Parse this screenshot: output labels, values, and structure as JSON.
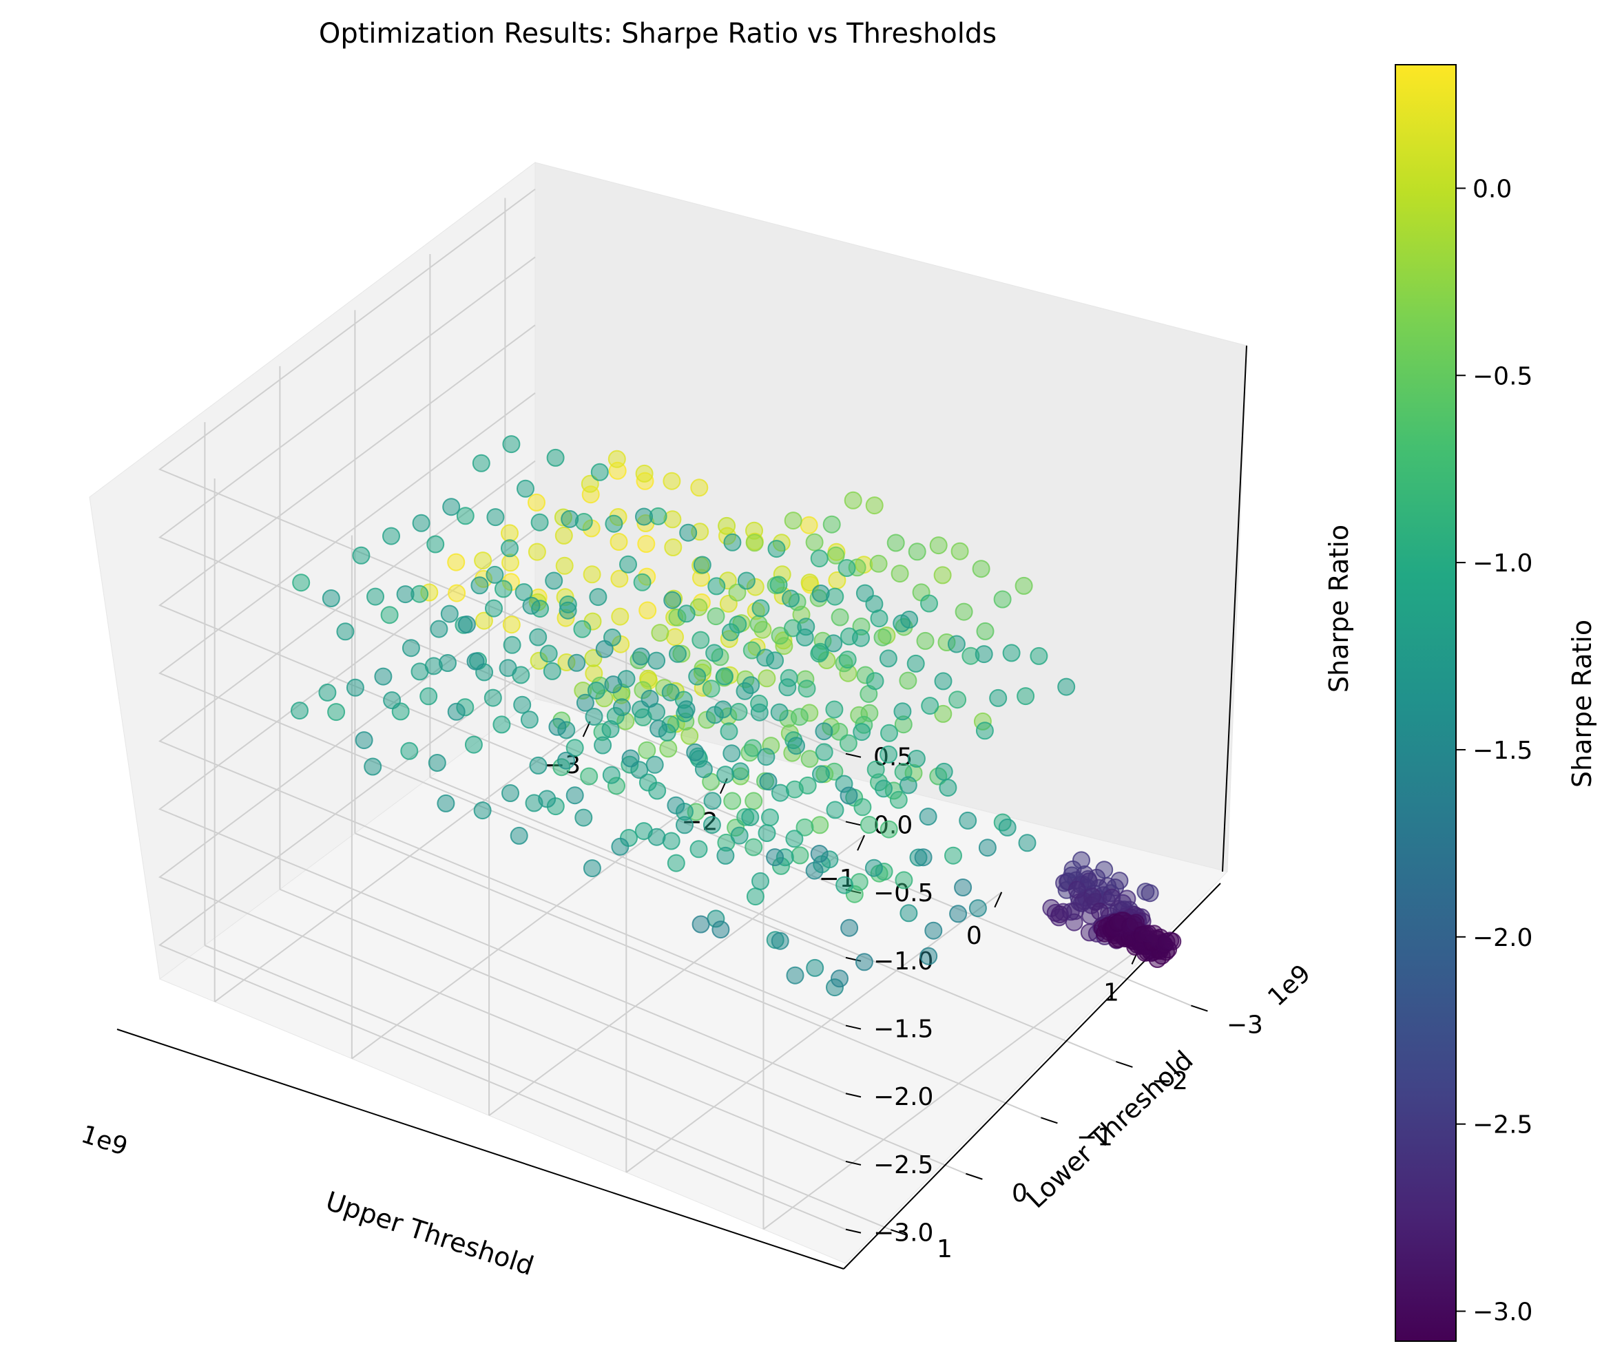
{
  "chart_data": {
    "type": "scatter",
    "projection": "3d",
    "title": "Optimization Results: Sharpe Ratio vs Thresholds",
    "xlabel": "Upper Threshold",
    "ylabel": "Lower Threshold",
    "zlabel": "Sharpe Ratio",
    "x_offset_text": "1e9",
    "y_offset_text": "1e9",
    "x_ticks": [
      "−3",
      "−2",
      "−1",
      "0",
      "1"
    ],
    "y_ticks": [
      "−3",
      "−2",
      "−1",
      "0",
      "1"
    ],
    "z_ticks": [
      "−3.0",
      "−2.5",
      "−2.0",
      "−1.5",
      "−1.0",
      "−0.5",
      "0.0",
      "0.5"
    ],
    "xlim": [
      -3.4,
      1.6
    ],
    "ylim": [
      -3.4,
      1.6
    ],
    "zlim": [
      -3.25,
      0.6
    ],
    "grid": true,
    "colormap": "viridis",
    "marker_alpha": 0.5,
    "colorbar": {
      "label": "Sharpe Ratio",
      "range": [
        -3.08,
        0.33
      ],
      "ticks": [
        "−3.0",
        "−2.5",
        "−2.0",
        "−1.5",
        "−1.0",
        "−0.5",
        "0.0"
      ]
    },
    "point_groups": [
      {
        "description": "left shelf",
        "x_range": [
          -3.3,
          -0.4
        ],
        "y_range": [
          -2.9,
          -0.1
        ],
        "z_range": [
          -1.3,
          -0.95
        ]
      },
      {
        "description": "left plateau rows",
        "x_range": [
          -2.6,
          -0.2
        ],
        "y_range": [
          -1.4,
          1.2
        ],
        "z_range": [
          -1.4,
          -1.0
        ]
      },
      {
        "description": "yellow ridge",
        "x_range": [
          -1.6,
          0.2
        ],
        "y_range": [
          -1.2,
          1.3
        ],
        "z_range": [
          0.0,
          0.33
        ]
      },
      {
        "description": "middle green bands",
        "x_range": [
          -0.8,
          0.6
        ],
        "y_range": [
          -2.6,
          1.0
        ],
        "z_range": [
          -0.6,
          -0.2
        ]
      },
      {
        "description": "middle teal bands",
        "x_range": [
          -1.0,
          0.8
        ],
        "y_range": [
          -2.8,
          1.0
        ],
        "z_range": [
          -1.2,
          -0.8
        ]
      },
      {
        "description": "right scatter",
        "x_range": [
          0.2,
          1.5
        ],
        "y_range": [
          -1.0,
          1.3
        ],
        "z_range": [
          -1.6,
          -0.3
        ]
      },
      {
        "description": "isolated low cluster",
        "x_range": [
          0.8,
          1.3
        ],
        "y_range": [
          -3.0,
          -2.6
        ],
        "z_range": [
          -2.8,
          -2.5
        ]
      },
      {
        "description": "lowest cluster",
        "x_range": [
          0.9,
          1.3
        ],
        "y_range": [
          -3.3,
          -3.1
        ],
        "z_range": [
          -3.08,
          -3.0
        ]
      }
    ]
  }
}
